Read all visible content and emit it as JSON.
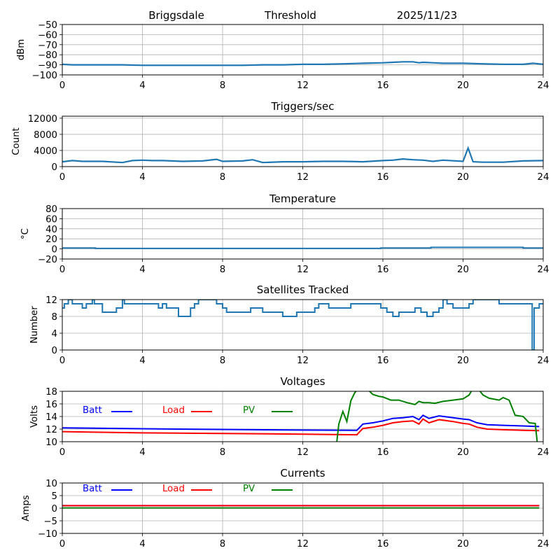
{
  "header": {
    "station": "Briggsdale",
    "mode": "Threshold",
    "date": "2025/11/23"
  },
  "chart_data": [
    {
      "type": "line",
      "id": "signal",
      "title": "",
      "xlabel": "",
      "ylabel": "dBm",
      "xlim": [
        0,
        24
      ],
      "ylim": [
        -100,
        -50
      ],
      "xticks": [
        0,
        4,
        8,
        12,
        16,
        20,
        24
      ],
      "yticks": [
        -100,
        -90,
        -80,
        -70,
        -60,
        -50
      ],
      "ytick_labels": [
        "−100",
        "−90",
        "−80",
        "−70",
        "−60",
        "−50"
      ],
      "grid": true,
      "series": [
        {
          "name": "Threshold",
          "color": "#1f77b4",
          "x": [
            0,
            0.5,
            1,
            2,
            3,
            4,
            5,
            6,
            7,
            8,
            9,
            10,
            11,
            12,
            13,
            14,
            15,
            16,
            16.5,
            17,
            17.5,
            17.8,
            18,
            18.5,
            19,
            20,
            21,
            22,
            23,
            23.5,
            24
          ],
          "y": [
            -89.5,
            -90,
            -90,
            -90,
            -90,
            -90.5,
            -90.5,
            -90.5,
            -90.5,
            -90.5,
            -90.5,
            -90,
            -90,
            -89.5,
            -89.5,
            -89,
            -88.5,
            -88,
            -87.5,
            -87,
            -87,
            -88,
            -87.5,
            -88,
            -88.5,
            -88.5,
            -89,
            -89.5,
            -89.5,
            -88.5,
            -89.5
          ]
        }
      ]
    },
    {
      "type": "line",
      "id": "triggers",
      "title": "Triggers/sec",
      "xlabel": "",
      "ylabel": "Count",
      "xlim": [
        0,
        24
      ],
      "ylim": [
        0,
        12500
      ],
      "xticks": [
        0,
        4,
        8,
        12,
        16,
        20,
        24
      ],
      "yticks": [
        0,
        4000,
        8000,
        12000
      ],
      "ytick_labels": [
        "0",
        "4000",
        "8000",
        "12000"
      ],
      "grid": true,
      "series": [
        {
          "name": "Triggers",
          "color": "#1f77b4",
          "x": [
            0,
            0.5,
            1,
            2,
            3,
            3.5,
            4,
            4.5,
            5,
            6,
            7,
            7.7,
            8,
            9,
            9.5,
            10,
            11,
            12,
            13,
            14,
            15,
            16,
            16.5,
            17,
            17.5,
            18,
            18.5,
            19,
            20,
            20.25,
            20.5,
            21,
            22,
            23,
            24
          ],
          "y": [
            1200,
            1500,
            1300,
            1300,
            1000,
            1500,
            1600,
            1500,
            1500,
            1300,
            1400,
            1800,
            1300,
            1400,
            1700,
            1000,
            1200,
            1200,
            1300,
            1300,
            1200,
            1500,
            1600,
            1900,
            1700,
            1600,
            1300,
            1600,
            1300,
            4600,
            1200,
            1100,
            1100,
            1400,
            1500
          ]
        }
      ]
    },
    {
      "type": "line",
      "id": "temperature",
      "title": "Temperature",
      "xlabel": "",
      "ylabel": "°C",
      "xlim": [
        0,
        24
      ],
      "ylim": [
        -20,
        80
      ],
      "xticks": [
        0,
        4,
        8,
        12,
        16,
        20,
        24
      ],
      "yticks": [
        -20,
        0,
        20,
        40,
        60,
        80
      ],
      "ytick_labels": [
        "−20",
        "0",
        "20",
        "40",
        "60",
        "80"
      ],
      "grid": true,
      "series": [
        {
          "name": "Temperature",
          "color": "#1f77b4",
          "step": true,
          "x": [
            0,
            1.65,
            15.9,
            18.4,
            23.0,
            24
          ],
          "y": [
            2,
            1,
            2,
            3,
            2,
            2
          ]
        }
      ]
    },
    {
      "type": "line",
      "id": "satellites",
      "title": "Satellites Tracked",
      "xlabel": "",
      "ylabel": "Number",
      "xlim": [
        0,
        24
      ],
      "ylim": [
        0,
        12
      ],
      "xticks": [
        0,
        4,
        8,
        12,
        16,
        20,
        24
      ],
      "yticks": [
        0,
        4,
        8,
        12
      ],
      "ytick_labels": [
        "0",
        "4",
        "8",
        "12"
      ],
      "grid": true,
      "series": [
        {
          "name": "Satellites",
          "color": "#1f77b4",
          "step": true,
          "x": [
            0,
            0.1,
            0.3,
            0.5,
            0.7,
            1.0,
            1.2,
            1.5,
            1.6,
            2.0,
            2.7,
            3.0,
            3.1,
            3.3,
            3.9,
            4.5,
            4.8,
            5.0,
            5.2,
            5.6,
            5.8,
            6.1,
            6.4,
            6.6,
            6.8,
            7.3,
            7.7,
            8.0,
            8.2,
            8.6,
            9.1,
            9.4,
            9.6,
            10.0,
            10.6,
            11.0,
            11.5,
            11.7,
            12.4,
            12.6,
            12.8,
            13.0,
            13.3,
            13.7,
            14.0,
            14.4,
            15.2,
            15.4,
            15.9,
            16.2,
            16.5,
            16.8,
            17.0,
            17.6,
            17.9,
            18.2,
            18.5,
            18.8,
            19.0,
            19.2,
            19.5,
            19.9,
            20.3,
            20.5,
            20.8,
            21.5,
            21.8,
            22.3,
            23.0,
            23.45,
            23.55,
            23.8,
            24
          ],
          "y": [
            10,
            11,
            12,
            11,
            11,
            10,
            11,
            12,
            11,
            9,
            10,
            12,
            11,
            11,
            11,
            11,
            10,
            11,
            10,
            10,
            8,
            8,
            10,
            11,
            12,
            12,
            11,
            10,
            9,
            9,
            9,
            10,
            10,
            9,
            9,
            8,
            8,
            9,
            9,
            10,
            11,
            11,
            10,
            10,
            10,
            11,
            11,
            11,
            10,
            9,
            8,
            9,
            9,
            10,
            9,
            8,
            9,
            10,
            12,
            11,
            10,
            10,
            11,
            12,
            12,
            12,
            11,
            11,
            11,
            0,
            10,
            11,
            11
          ]
        }
      ]
    },
    {
      "type": "line",
      "id": "voltages",
      "title": "Voltages",
      "xlabel": "",
      "ylabel": "Volts",
      "xlim": [
        0,
        24
      ],
      "ylim": [
        10,
        18
      ],
      "xticks": [
        0,
        4,
        8,
        12,
        16,
        20,
        24
      ],
      "yticks": [
        10,
        12,
        14,
        16,
        18
      ],
      "ytick_labels": [
        "10",
        "12",
        "14",
        "16",
        "18"
      ],
      "grid": true,
      "legend": "top-left-inline",
      "series": [
        {
          "name": "Batt",
          "color": "#0000ff",
          "x": [
            0,
            4,
            8,
            12,
            14.7,
            15.0,
            15.5,
            16,
            16.5,
            17,
            17.5,
            17.8,
            18,
            18.3,
            18.8,
            19.5,
            20,
            20.3,
            20.7,
            21.2,
            22,
            23,
            23.8
          ],
          "y": [
            12.2,
            12.05,
            11.95,
            11.85,
            11.8,
            12.8,
            13.0,
            13.3,
            13.7,
            13.8,
            14.0,
            13.5,
            14.2,
            13.7,
            14.1,
            13.8,
            13.6,
            13.5,
            13.0,
            12.7,
            12.6,
            12.5,
            12.4
          ]
        },
        {
          "name": "Load",
          "color": "#ff0000",
          "x": [
            0,
            4,
            8,
            12,
            14.7,
            15.0,
            15.5,
            16,
            16.5,
            17,
            17.5,
            17.8,
            18,
            18.3,
            18.8,
            19.5,
            20,
            20.3,
            20.7,
            21.2,
            22,
            23,
            23.8
          ],
          "y": [
            11.6,
            11.4,
            11.3,
            11.2,
            11.1,
            12.1,
            12.3,
            12.6,
            13.0,
            13.2,
            13.3,
            12.8,
            13.6,
            13.0,
            13.5,
            13.2,
            12.9,
            12.8,
            12.3,
            12.0,
            11.9,
            11.8,
            11.75
          ]
        },
        {
          "name": "PV",
          "color": "#008000",
          "x": [
            13.7,
            13.8,
            14.0,
            14.2,
            14.4,
            14.6,
            14.8,
            15.0,
            15.5,
            15.8,
            16.0,
            16.4,
            16.8,
            17.2,
            17.6,
            17.8,
            18.0,
            18.3,
            18.6,
            19.0,
            19.5,
            20.0,
            20.3,
            20.6,
            21.0,
            21.3,
            21.8,
            22.0,
            22.3,
            22.6,
            23.0,
            23.3,
            23.6,
            23.7
          ],
          "y": [
            10,
            12.8,
            14.8,
            13.2,
            16.5,
            17.8,
            18.5,
            19,
            17.5,
            17.2,
            17.1,
            16.6,
            16.6,
            16.2,
            15.9,
            16.4,
            16.2,
            16.2,
            16.1,
            16.4,
            16.6,
            16.8,
            17.4,
            19,
            17.4,
            16.9,
            16.6,
            17.0,
            16.6,
            14.2,
            14.0,
            13.0,
            12.9,
            10
          ]
        }
      ]
    },
    {
      "type": "line",
      "id": "currents",
      "title": "Currents",
      "xlabel": "",
      "ylabel": "Amps",
      "xlim": [
        0,
        24
      ],
      "ylim": [
        -10,
        10
      ],
      "xticks": [
        0,
        4,
        8,
        12,
        16,
        20,
        24
      ],
      "yticks": [
        -10,
        -5,
        0,
        5,
        10
      ],
      "ytick_labels": [
        "−10",
        "−5",
        "0",
        "5",
        "10"
      ],
      "grid": true,
      "legend": "top-left-inline",
      "series": [
        {
          "name": "Batt",
          "color": "#0000ff",
          "x": [
            0,
            23.8
          ],
          "y": [
            1.0,
            1.0
          ]
        },
        {
          "name": "Load",
          "color": "#ff0000",
          "x": [
            0,
            23.8
          ],
          "y": [
            1.0,
            1.0
          ]
        },
        {
          "name": "PV",
          "color": "#008000",
          "x": [
            0,
            23.8
          ],
          "y": [
            0.1,
            0.1
          ]
        }
      ]
    }
  ]
}
